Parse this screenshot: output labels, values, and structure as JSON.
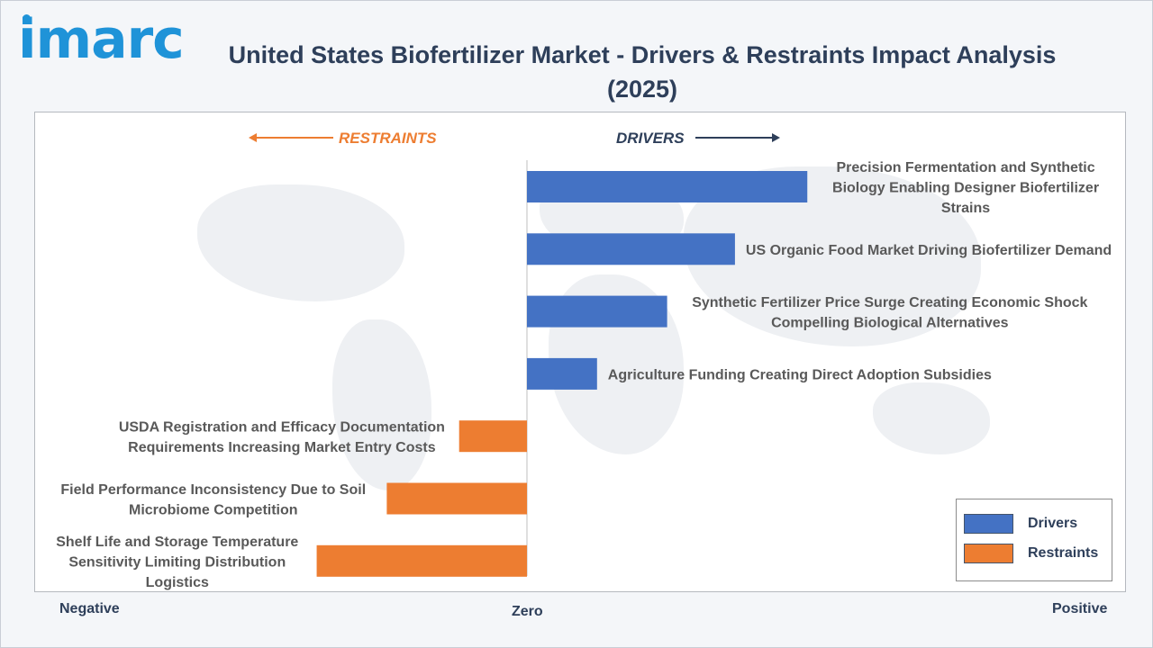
{
  "brand": {
    "logo_text": "imarc"
  },
  "colors": {
    "drivers": "#4472c4",
    "restraints": "#ed7d31",
    "title": "#2e3f5a",
    "label": "#595959"
  },
  "header": {
    "title": "United States Biofertilizer Market - Drivers & Restraints Impact Analysis (2025)"
  },
  "directions": {
    "restraints": "RESTRAINTS",
    "drivers": "DRIVERS"
  },
  "axis": {
    "negative": "Negative",
    "zero": "Zero",
    "positive": "Positive"
  },
  "legend": {
    "drivers": "Drivers",
    "restraints": "Restraints"
  },
  "chart_data": {
    "type": "bar",
    "orientation": "horizontal",
    "title": "United States Biofertilizer Market - Drivers & Restraints Impact Analysis (2025)",
    "xlim": [
      -1,
      1
    ],
    "grid": false,
    "legend_position": "bottom-right",
    "categories": [
      "Precision Fermentation and Synthetic Biology Enabling Designer Biofertilizer Strains",
      "US Organic Food Market Driving Biofertilizer Demand",
      "Synthetic Fertilizer Price Surge Creating Economic Shock Compelling Biological Alternatives",
      "Agriculture Funding Creating Direct Adoption Subsidies",
      "USDA Registration and Efficacy Documentation Requirements Increasing Market Entry Costs",
      "Field Performance Inconsistency Due to Soil Microbiome Competition",
      "Shelf Life and Storage Temperature Sensitivity Limiting Distribution Logistics"
    ],
    "series": [
      {
        "name": "Drivers",
        "values": [
          0.62,
          0.46,
          0.31,
          0.155,
          0,
          0,
          0
        ]
      },
      {
        "name": "Restraints",
        "values": [
          0,
          0,
          0,
          0,
          -0.15,
          -0.31,
          -0.465
        ]
      }
    ],
    "label_lines": [
      [
        "Precision Fermentation and Synthetic",
        "Biology Enabling Designer Biofertilizer",
        "Strains"
      ],
      [
        "US Organic Food Market Driving Biofertilizer Demand"
      ],
      [
        "Synthetic Fertilizer Price Surge Creating Economic Shock",
        "Compelling Biological Alternatives"
      ],
      [
        "Agriculture Funding Creating Direct Adoption Subsidies"
      ],
      [
        "USDA Registration and Efficacy Documentation",
        "Requirements Increasing Market Entry Costs"
      ],
      [
        "Field Performance Inconsistency Due to Soil",
        "Microbiome Competition"
      ],
      [
        "Shelf Life and Storage Temperature",
        "Sensitivity Limiting Distribution",
        "Logistics"
      ]
    ]
  }
}
